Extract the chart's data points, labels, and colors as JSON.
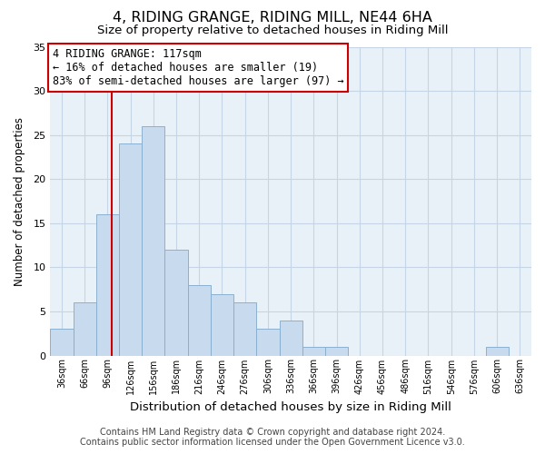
{
  "title": "4, RIDING GRANGE, RIDING MILL, NE44 6HA",
  "subtitle": "Size of property relative to detached houses in Riding Mill",
  "xlabel": "Distribution of detached houses by size in Riding Mill",
  "ylabel": "Number of detached properties",
  "bin_labels": [
    "36sqm",
    "66sqm",
    "96sqm",
    "126sqm",
    "156sqm",
    "186sqm",
    "216sqm",
    "246sqm",
    "276sqm",
    "306sqm",
    "336sqm",
    "366sqm",
    "396sqm",
    "426sqm",
    "456sqm",
    "486sqm",
    "516sqm",
    "546sqm",
    "576sqm",
    "606sqm",
    "636sqm"
  ],
  "bin_starts": [
    36,
    66,
    96,
    126,
    156,
    186,
    216,
    246,
    276,
    306,
    336,
    366,
    396,
    426,
    456,
    486,
    516,
    546,
    576,
    606,
    636
  ],
  "bin_width": 30,
  "counts": [
    3,
    6,
    16,
    24,
    26,
    12,
    8,
    7,
    6,
    3,
    4,
    1,
    1,
    0,
    0,
    0,
    0,
    0,
    0,
    1,
    0
  ],
  "bar_color": "#c8daee",
  "bar_edgecolor": "#8ab0d0",
  "vline_x": 117,
  "vline_color": "#cc0000",
  "ylim": [
    0,
    35
  ],
  "yticks": [
    0,
    5,
    10,
    15,
    20,
    25,
    30,
    35
  ],
  "annotation_line1": "4 RIDING GRANGE: 117sqm",
  "annotation_line2": "← 16% of detached houses are smaller (19)",
  "annotation_line3": "83% of semi-detached houses are larger (97) →",
  "annotation_box_edgecolor": "#cc0000",
  "footer_line1": "Contains HM Land Registry data © Crown copyright and database right 2024.",
  "footer_line2": "Contains public sector information licensed under the Open Government Licence v3.0.",
  "title_fontsize": 11.5,
  "subtitle_fontsize": 9.5,
  "xlabel_fontsize": 9.5,
  "ylabel_fontsize": 8.5,
  "annotation_fontsize": 8.5,
  "tick_fontsize": 7,
  "ytick_fontsize": 8,
  "footer_fontsize": 7,
  "background_color": "#ffffff",
  "plot_bg_color": "#e8f0f8",
  "grid_color": "#c5d5e5"
}
